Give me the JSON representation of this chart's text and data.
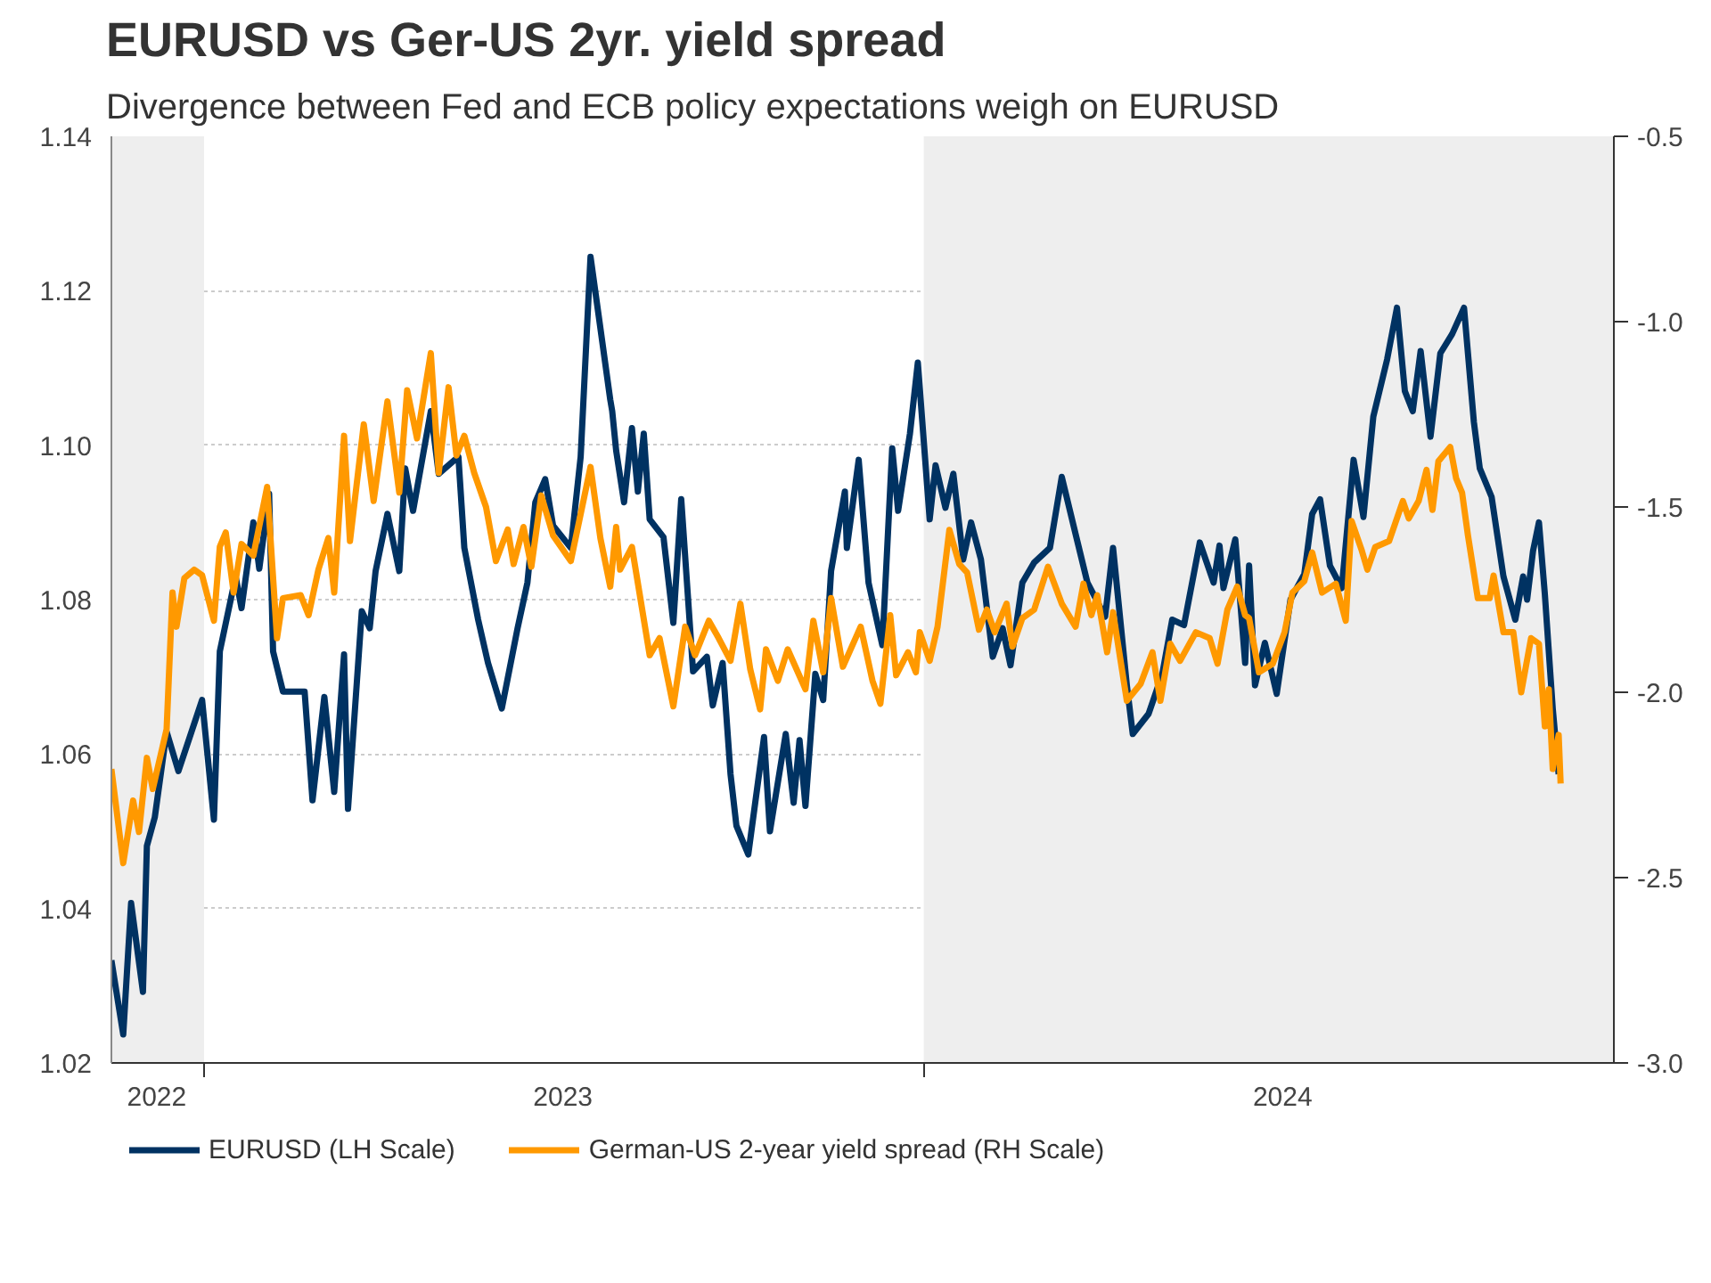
{
  "chart_data": {
    "type": "line",
    "title": "EURUSD vs Ger-US 2yr. yield spread",
    "subtitle": "Divergence between Fed and ECB policy expectations weigh on EURUSD",
    "xlim": [
      "2022-11-15",
      "2024-12-16"
    ],
    "xticks": [
      {
        "value": "2022-12-08",
        "label": "2022"
      },
      {
        "value": "2023-01-01",
        "label": null
      },
      {
        "value": "2023-07-02",
        "label": "2023"
      },
      {
        "value": "2024-01-01",
        "label": null
      },
      {
        "value": "2024-07-01",
        "label": "2024"
      }
    ],
    "ylim": [
      1.02,
      1.14
    ],
    "yticks": [
      1.02,
      1.04,
      1.06,
      1.08,
      {
        "value": 1.1,
        "label": "1.10"
      },
      1.12,
      1.14
    ],
    "y2lim": [
      -3.0,
      -0.5
    ],
    "y2ticks": [
      {
        "value": -3,
        "label": "-3.0"
      },
      -2.5,
      {
        "value": -2,
        "label": "-2.0"
      },
      -1.5,
      {
        "value": -1,
        "label": "-1.0"
      },
      -0.5
    ],
    "grid": "y",
    "legend": "bottom",
    "line_style": "solid",
    "bands": [
      {
        "axis": "x",
        "from": "2022-11-15",
        "to": "2023-01-01",
        "color": "#eeeeee"
      },
      {
        "axis": "x",
        "from": "2024-01-01",
        "to": "2024-12-16",
        "color": "#eeeeee"
      }
    ],
    "series": [
      {
        "name": "EURUSD (LH Scale)",
        "color": "#003262",
        "axis": "y",
        "x": [
          "2022-11-15",
          "2022-11-21",
          "2022-11-25",
          "2022-12-01",
          "2022-12-03",
          "2022-12-07",
          "2022-12-13",
          "2022-12-19",
          "2022-12-31",
          "2023-01-06",
          "2023-01-09",
          "2023-01-17",
          "2023-01-20",
          "2023-01-26",
          "2023-01-29",
          "2023-02-03",
          "2023-02-05",
          "2023-02-10",
          "2023-02-21",
          "2023-02-25",
          "2023-03-03",
          "2023-03-08",
          "2023-03-13",
          "2023-03-15",
          "2023-03-22",
          "2023-03-26",
          "2023-03-29",
          "2023-04-04",
          "2023-04-10",
          "2023-04-13",
          "2023-04-17",
          "2023-04-26",
          "2023-04-30",
          "2023-05-10",
          "2023-05-13",
          "2023-05-20",
          "2023-05-25",
          "2023-06-01",
          "2023-06-09",
          "2023-06-14",
          "2023-06-18",
          "2023-06-23",
          "2023-06-27",
          "2023-07-06",
          "2023-07-11",
          "2023-07-16",
          "2023-07-20",
          "2023-07-26",
          "2023-07-27",
          "2023-07-29",
          "2023-08-02",
          "2023-08-06",
          "2023-08-09",
          "2023-08-12",
          "2023-08-15",
          "2023-08-22",
          "2023-08-27",
          "2023-08-31",
          "2023-09-06",
          "2023-09-13",
          "2023-09-16",
          "2023-09-21",
          "2023-09-25",
          "2023-09-28",
          "2023-10-04",
          "2023-10-12",
          "2023-10-15",
          "2023-10-23",
          "2023-10-27",
          "2023-10-30",
          "2023-11-02",
          "2023-11-07",
          "2023-11-11",
          "2023-11-15",
          "2023-11-22",
          "2023-11-23",
          "2023-11-29",
          "2023-12-04",
          "2023-12-11",
          "2023-12-16",
          "2023-12-19",
          "2023-12-25",
          "2023-12-29",
          "2024-01-04",
          "2024-01-07",
          "2024-01-12",
          "2024-01-16",
          "2024-01-21",
          "2024-01-25",
          "2024-01-30",
          "2024-02-05",
          "2024-02-10",
          "2024-02-14",
          "2024-02-20",
          "2024-02-26",
          "2024-03-05",
          "2024-03-11",
          "2024-03-18",
          "2024-03-24",
          "2024-04-02",
          "2024-04-06",
          "2024-04-13",
          "2024-04-16",
          "2024-04-24",
          "2024-05-01",
          "2024-05-06",
          "2024-05-12",
          "2024-05-20",
          "2024-05-27",
          "2024-05-30",
          "2024-06-01",
          "2024-06-07",
          "2024-06-12",
          "2024-06-14",
          "2024-06-17",
          "2024-06-22",
          "2024-06-28",
          "2024-07-05",
          "2024-07-12",
          "2024-07-16",
          "2024-07-20",
          "2024-07-25",
          "2024-07-31",
          "2024-08-06",
          "2024-08-11",
          "2024-08-16",
          "2024-08-23",
          "2024-08-28",
          "2024-09-01",
          "2024-09-05",
          "2024-09-09",
          "2024-09-14",
          "2024-09-19",
          "2024-09-25",
          "2024-10-01",
          "2024-10-06",
          "2024-10-09",
          "2024-10-15",
          "2024-10-21",
          "2024-10-27",
          "2024-10-31",
          "2024-11-02",
          "2024-11-05",
          "2024-11-08",
          "2024-11-11",
          "2024-11-15",
          "2024-11-18"
        ],
        "values": [
          1.0333,
          1.0237,
          1.0407,
          1.0292,
          1.0481,
          1.0518,
          1.0629,
          1.0578,
          1.067,
          1.0515,
          1.0733,
          1.083,
          1.0789,
          1.09,
          1.084,
          1.0937,
          1.0733,
          1.0681,
          1.0681,
          1.054,
          1.0674,
          1.0551,
          1.0729,
          1.0529,
          1.0785,
          1.0763,
          1.0837,
          1.0911,
          1.0837,
          1.097,
          1.0915,
          1.1044,
          1.0963,
          1.0985,
          1.0867,
          1.0774,
          1.0718,
          1.0659,
          1.0763,
          1.0822,
          1.0926,
          1.0956,
          1.0896,
          1.0867,
          1.0985,
          1.1244,
          1.117,
          1.1059,
          1.1044,
          1.0993,
          1.0926,
          1.1022,
          1.094,
          1.1015,
          1.0904,
          1.0881,
          1.077,
          1.093,
          1.0707,
          1.0726,
          1.0663,
          1.0718,
          1.0574,
          1.0507,
          1.047,
          1.0622,
          1.05,
          1.0626,
          1.0537,
          1.0618,
          1.0533,
          1.0704,
          1.067,
          1.0837,
          1.094,
          1.0867,
          1.0981,
          1.0822,
          1.0741,
          1.0996,
          1.0915,
          1.1015,
          1.1107,
          1.0904,
          1.0974,
          1.0919,
          1.0963,
          1.0852,
          1.09,
          1.0852,
          1.0726,
          1.0763,
          1.0715,
          1.0822,
          1.0848,
          1.0867,
          1.0959,
          1.0885,
          1.0822,
          1.0778,
          1.0867,
          1.0689,
          1.0626,
          1.0652,
          1.0704,
          1.0774,
          1.0767,
          1.0874,
          1.0822,
          1.087,
          1.0815,
          1.0878,
          1.0718,
          1.0844,
          1.0689,
          1.0744,
          1.0678,
          1.08,
          1.0833,
          1.0911,
          1.093,
          1.0844,
          1.0815,
          1.0981,
          1.0907,
          1.1037,
          1.1111,
          1.1178,
          1.107,
          1.1044,
          1.1122,
          1.1011,
          1.1119,
          1.1144,
          1.1178,
          1.103,
          1.097,
          1.0933,
          1.083,
          1.0774,
          1.083,
          1.08,
          1.0863,
          1.09,
          1.0807,
          1.0659,
          1.0574
        ]
      },
      {
        "name": "German-US 2-year yield spread (RH Scale)",
        "color": "#ff9900",
        "axis": "y2",
        "x": [
          "2022-11-15",
          "2022-11-21",
          "2022-11-26",
          "2022-11-29",
          "2022-12-03",
          "2022-12-06",
          "2022-12-13",
          "2022-12-16",
          "2022-12-18",
          "2022-12-22",
          "2022-12-27",
          "2022-12-31",
          "2023-01-06",
          "2023-01-09",
          "2023-01-12",
          "2023-01-16",
          "2023-01-20",
          "2023-01-26",
          "2023-02-02",
          "2023-02-07",
          "2023-02-10",
          "2023-02-19",
          "2023-02-23",
          "2023-02-28",
          "2023-03-05",
          "2023-03-08",
          "2023-03-13",
          "2023-03-16",
          "2023-03-23",
          "2023-03-28",
          "2023-04-04",
          "2023-04-10",
          "2023-04-14",
          "2023-04-19",
          "2023-04-26",
          "2023-04-30",
          "2023-05-05",
          "2023-05-09",
          "2023-05-13",
          "2023-05-18",
          "2023-05-24",
          "2023-05-29",
          "2023-06-04",
          "2023-06-07",
          "2023-06-12",
          "2023-06-16",
          "2023-06-21",
          "2023-06-27",
          "2023-07-06",
          "2023-07-16",
          "2023-07-21",
          "2023-07-26",
          "2023-07-29",
          "2023-07-31",
          "2023-08-06",
          "2023-08-15",
          "2023-08-20",
          "2023-08-27",
          "2023-09-02",
          "2023-09-07",
          "2023-09-14",
          "2023-09-19",
          "2023-09-25",
          "2023-09-30",
          "2023-10-05",
          "2023-10-10",
          "2023-10-13",
          "2023-10-19",
          "2023-10-24",
          "2023-11-02",
          "2023-11-06",
          "2023-11-11",
          "2023-11-15",
          "2023-11-21",
          "2023-11-30",
          "2023-12-06",
          "2023-12-10",
          "2023-12-15",
          "2023-12-18",
          "2023-12-24",
          "2023-12-28",
          "2023-12-30",
          "2024-01-04",
          "2024-01-08",
          "2024-01-14",
          "2024-01-19",
          "2024-01-23",
          "2024-01-29",
          "2024-02-02",
          "2024-02-06",
          "2024-02-12",
          "2024-02-15",
          "2024-02-20",
          "2024-02-26",
          "2024-03-04",
          "2024-03-11",
          "2024-03-18",
          "2024-03-22",
          "2024-03-26",
          "2024-03-29",
          "2024-04-03",
          "2024-04-06",
          "2024-04-13",
          "2024-04-20",
          "2024-04-26",
          "2024-04-30",
          "2024-05-05",
          "2024-05-10",
          "2024-05-18",
          "2024-05-25",
          "2024-05-29",
          "2024-06-03",
          "2024-06-08",
          "2024-06-12",
          "2024-06-14",
          "2024-06-19",
          "2024-06-26",
          "2024-07-02",
          "2024-07-06",
          "2024-07-12",
          "2024-07-16",
          "2024-07-21",
          "2024-07-28",
          "2024-08-02",
          "2024-08-05",
          "2024-08-10",
          "2024-08-13",
          "2024-08-17",
          "2024-08-24",
          "2024-08-31",
          "2024-09-03",
          "2024-09-08",
          "2024-09-12",
          "2024-09-15",
          "2024-09-18",
          "2024-09-24",
          "2024-09-27",
          "2024-09-30",
          "2024-10-03",
          "2024-10-08",
          "2024-10-14",
          "2024-10-16",
          "2024-10-21",
          "2024-10-26",
          "2024-10-30",
          "2024-11-04",
          "2024-11-08",
          "2024-11-11",
          "2024-11-13",
          "2024-11-15",
          "2024-11-18",
          "2024-11-19"
        ],
        "values": [
          -2.207,
          -2.461,
          -2.292,
          -2.377,
          -2.177,
          -2.261,
          -2.1,
          -1.731,
          -1.823,
          -1.692,
          -1.669,
          -1.684,
          -1.807,
          -1.607,
          -1.569,
          -1.731,
          -1.6,
          -1.631,
          -1.446,
          -1.854,
          -1.746,
          -1.738,
          -1.792,
          -1.669,
          -1.584,
          -1.731,
          -1.308,
          -1.592,
          -1.277,
          -1.484,
          -1.215,
          -1.461,
          -1.185,
          -1.315,
          -1.085,
          -1.408,
          -1.177,
          -1.361,
          -1.308,
          -1.408,
          -1.5,
          -1.646,
          -1.561,
          -1.654,
          -1.554,
          -1.661,
          -1.469,
          -1.577,
          -1.646,
          -1.392,
          -1.584,
          -1.715,
          -1.554,
          -1.669,
          -1.608,
          -1.9,
          -1.854,
          -2.038,
          -1.823,
          -1.9,
          -1.807,
          -1.854,
          -1.915,
          -1.761,
          -1.938,
          -2.046,
          -1.884,
          -1.969,
          -1.884,
          -1.992,
          -1.807,
          -1.946,
          -1.746,
          -1.931,
          -1.823,
          -1.969,
          -2.031,
          -1.792,
          -1.954,
          -1.892,
          -1.946,
          -1.838,
          -1.915,
          -1.823,
          -1.562,
          -1.654,
          -1.677,
          -1.831,
          -1.777,
          -1.838,
          -1.761,
          -1.877,
          -1.8,
          -1.777,
          -1.661,
          -1.761,
          -1.823,
          -1.707,
          -1.792,
          -1.738,
          -1.892,
          -1.784,
          -2.023,
          -1.977,
          -1.892,
          -2.023,
          -1.869,
          -1.915,
          -1.838,
          -1.854,
          -1.923,
          -1.777,
          -1.715,
          -1.792,
          -1.8,
          -1.946,
          -1.923,
          -1.838,
          -1.731,
          -1.7,
          -1.623,
          -1.731,
          -1.707,
          -1.807,
          -1.538,
          -1.615,
          -1.669,
          -1.608,
          -1.592,
          -1.484,
          -1.531,
          -1.484,
          -1.4,
          -1.508,
          -1.377,
          -1.338,
          -1.423,
          -1.461,
          -1.577,
          -1.746,
          -1.746,
          -1.685,
          -1.838,
          -1.838,
          -2.0,
          -1.854,
          -1.869,
          -2.092,
          -1.992,
          -2.207,
          -2.115,
          -2.246
        ]
      }
    ]
  }
}
